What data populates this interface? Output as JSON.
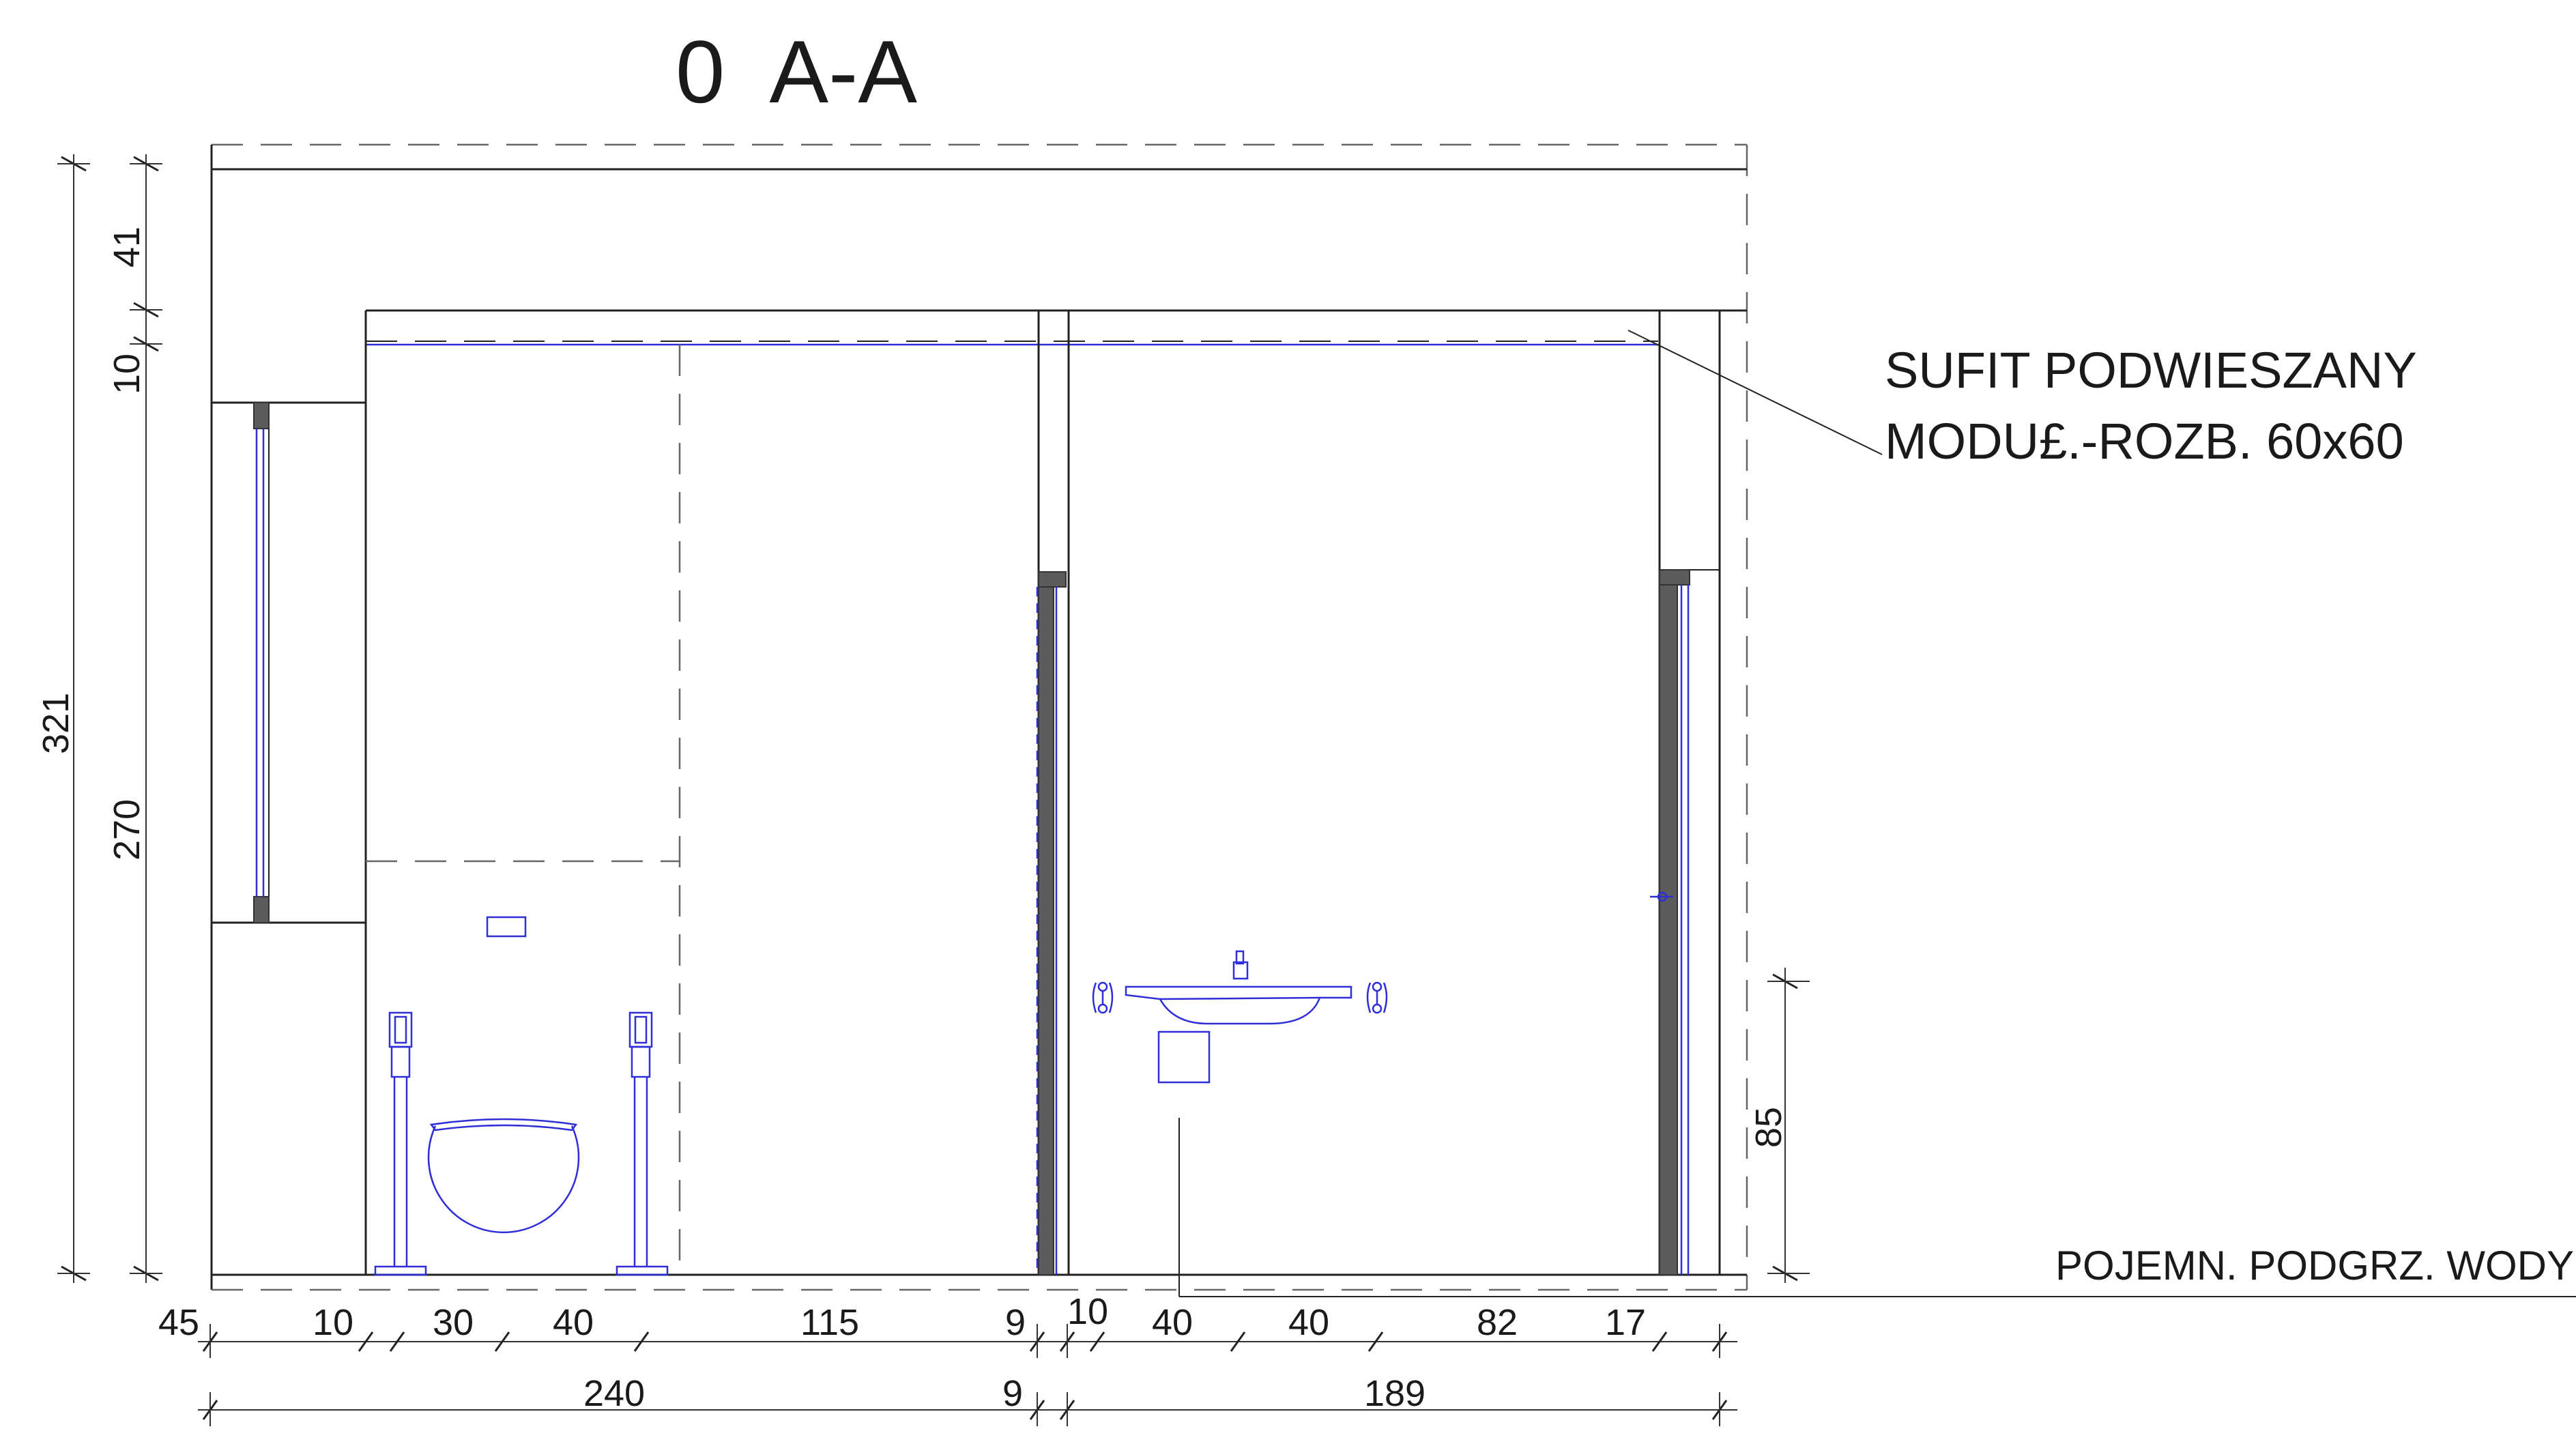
{
  "section_title": "0  A-A",
  "labels": {
    "ceiling_line1": "SUFIT PODWIESZANY",
    "ceiling_line2": "MODU£.-ROZB. 60x60",
    "water_heater": "POJEMN. PODGRZ. WODY"
  },
  "dimensions": {
    "vertical_outer": {
      "total": "321"
    },
    "vertical_inner": {
      "top": "41",
      "ceiling": "10",
      "height": "270"
    },
    "vertical_right": {
      "sink_height": "85"
    },
    "bottom_row1": [
      "45",
      "10",
      "30",
      "40",
      "115",
      "9",
      "10",
      "40",
      "40",
      "82",
      "17"
    ],
    "bottom_row2": [
      "240",
      "9",
      "189"
    ]
  },
  "colors": {
    "line": "#222222",
    "fixtures": "#2e2ed8",
    "wall_section": "#5c5c5c"
  }
}
